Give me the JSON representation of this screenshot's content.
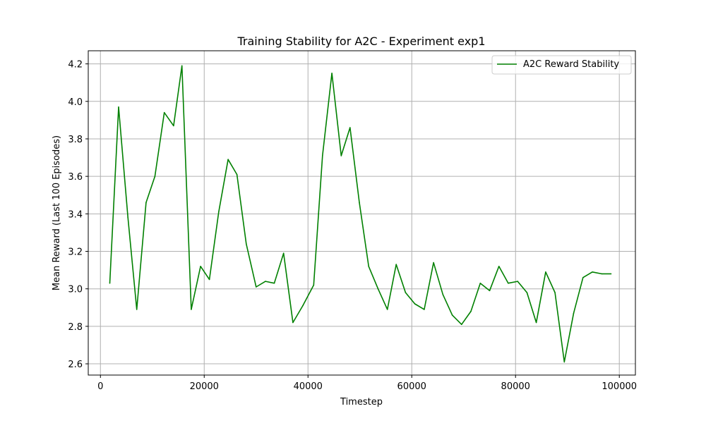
{
  "chart_data": {
    "type": "line",
    "title": "Training Stability for A2C - Experiment exp1",
    "xlabel": "Timestep",
    "ylabel": "Mean Reward (Last 100 Episodes)",
    "xlim": [
      -2350,
      103100
    ],
    "ylim": [
      2.54,
      4.27
    ],
    "x_ticks": [
      0,
      20000,
      40000,
      60000,
      80000,
      100000
    ],
    "x_tick_labels": [
      "0",
      "20000",
      "40000",
      "60000",
      "80000",
      "100000"
    ],
    "y_ticks": [
      2.6,
      2.8,
      3.0,
      3.2,
      3.4,
      3.6,
      3.8,
      4.0,
      4.2
    ],
    "y_tick_labels": [
      "2.6",
      "2.8",
      "3.0",
      "3.2",
      "3.4",
      "3.6",
      "3.8",
      "4.0",
      "4.2"
    ],
    "grid": true,
    "legend_position": "top-right",
    "series": [
      {
        "name": "A2C Reward Stability",
        "color": "#008000",
        "x": [
          1800,
          3500,
          5300,
          7000,
          8800,
          10500,
          12300,
          14100,
          15700,
          17500,
          19300,
          21000,
          22800,
          24600,
          26300,
          28100,
          30000,
          31800,
          33500,
          35300,
          37100,
          39000,
          41100,
          42800,
          44600,
          46400,
          48100,
          49900,
          51700,
          53500,
          55300,
          57000,
          58800,
          60600,
          62400,
          64200,
          66000,
          67800,
          69600,
          71400,
          73200,
          75000,
          76800,
          78600,
          80400,
          82200,
          84000,
          85800,
          87600,
          89400,
          91200,
          93000,
          94800,
          96600,
          98400
        ],
        "values": [
          3.03,
          3.97,
          3.38,
          2.89,
          3.46,
          3.6,
          3.94,
          3.87,
          4.19,
          2.89,
          3.12,
          3.05,
          3.41,
          3.69,
          3.61,
          3.24,
          3.01,
          3.04,
          3.03,
          3.19,
          2.82,
          2.91,
          3.02,
          3.71,
          4.15,
          3.71,
          3.86,
          3.46,
          3.12,
          3.0,
          2.89,
          3.13,
          2.98,
          2.92,
          2.89,
          3.14,
          2.97,
          2.86,
          2.81,
          2.88,
          3.03,
          2.99,
          3.12,
          3.03,
          3.04,
          2.98,
          2.82,
          3.09,
          2.98,
          2.61,
          2.87,
          3.06,
          3.09,
          3.08,
          3.08
        ]
      }
    ]
  }
}
